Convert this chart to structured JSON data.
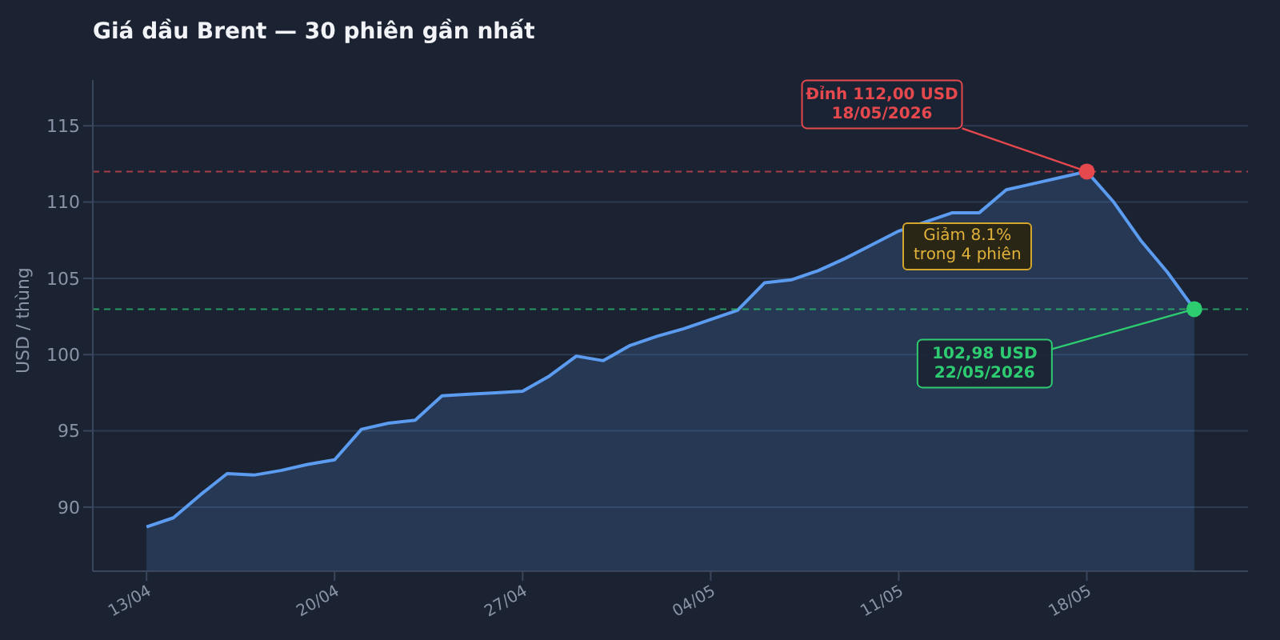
{
  "chart_data": {
    "type": "area",
    "title": "Giá dầu Brent — 30 phiên gần nhất",
    "ylabel": "USD / thùng",
    "x": [
      "2026-04-13",
      "2026-04-14",
      "2026-04-15",
      "2026-04-16",
      "2026-04-17",
      "2026-04-18",
      "2026-04-19",
      "2026-04-20",
      "2026-04-21",
      "2026-04-22",
      "2026-04-23",
      "2026-04-24",
      "2026-04-25",
      "2026-04-26",
      "2026-04-27",
      "2026-04-28",
      "2026-04-29",
      "2026-04-30",
      "2026-05-01",
      "2026-05-02",
      "2026-05-03",
      "2026-05-04",
      "2026-05-05",
      "2026-05-06",
      "2026-05-07",
      "2026-05-08",
      "2026-05-09",
      "2026-05-10",
      "2026-05-11",
      "2026-05-12",
      "2026-05-13",
      "2026-05-14",
      "2026-05-15",
      "2026-05-16",
      "2026-05-17",
      "2026-05-18",
      "2026-05-19",
      "2026-05-20",
      "2026-05-21",
      "2026-05-22"
    ],
    "series": [
      {
        "color": "#5b9cf0",
        "values": [
          88.7,
          89.3,
          90.8,
          92.2,
          92.1,
          92.4,
          92.8,
          93.1,
          95.1,
          95.5,
          95.7,
          97.3,
          97.4,
          97.5,
          97.6,
          98.6,
          99.9,
          99.6,
          100.6,
          101.2,
          101.7,
          102.3,
          102.9,
          104.7,
          104.9,
          105.5,
          106.3,
          107.2,
          108.1,
          108.7,
          109.3,
          109.3,
          110.8,
          111.2,
          111.6,
          112.0,
          110.0,
          107.5,
          105.4,
          102.98
        ]
      },
      {
        "type": "scatter",
        "marker": "circle",
        "x": [
          "2026-05-18",
          "2026-05-22"
        ],
        "colors": [
          "#e5484d",
          "#2ecc71"
        ],
        "values": [
          112.0,
          102.98
        ]
      }
    ],
    "xlim": [
      "2026-04-11",
      "2026-05-24"
    ],
    "xticks": [
      {
        "value": "2026-04-13",
        "label": "13/04"
      },
      {
        "value": "2026-04-20",
        "label": "20/04"
      },
      {
        "value": "2026-04-27",
        "label": "27/04"
      },
      {
        "value": "2026-05-04",
        "label": "04/05"
      },
      {
        "value": "2026-05-11",
        "label": "11/05"
      },
      {
        "value": "2026-05-18",
        "label": "18/05"
      }
    ],
    "ylim": [
      85.8,
      118
    ],
    "yticks": [
      90,
      95,
      100,
      105,
      110,
      115
    ],
    "grid": "y",
    "legend": false,
    "ref_lines": [
      {
        "axis": "y",
        "value": 112.0,
        "color": "#e5484d",
        "line_style": "dashed"
      },
      {
        "axis": "y",
        "value": 102.98,
        "color": "#2ecc71",
        "line_style": "dashed"
      }
    ],
    "annotations": [
      {
        "text": "Đỉnh 112,00 USD\n18/05/2026",
        "x": "2026-05-18",
        "y": 112.0
      },
      {
        "text": "102,98 USD\n22/05/2026",
        "x": "2026-05-22",
        "y": 102.98
      },
      "Giảm 8.1%\ntrong 4 phiên"
    ]
  }
}
